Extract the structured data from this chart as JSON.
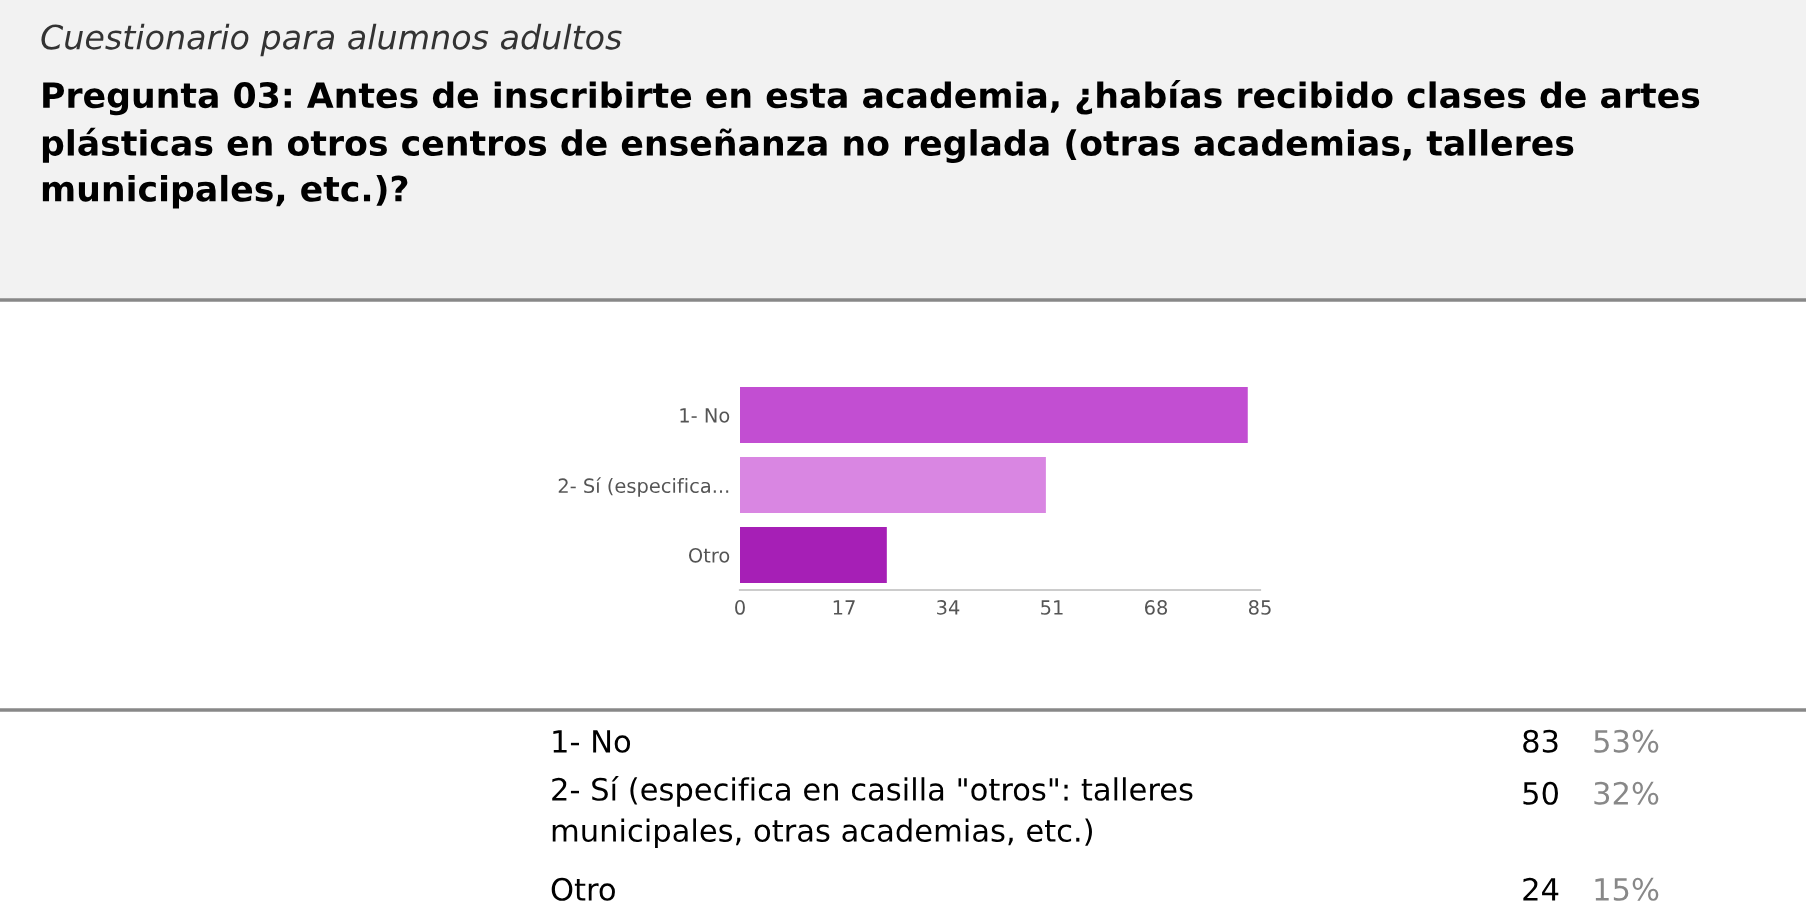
{
  "chart_data": {
    "type": "bar",
    "orientation": "horizontal",
    "subtitle": "Cuestionario para alumnos adultos",
    "title": "Pregunta 03: Antes de inscribirte en esta academia, ¿habías recibido clases de artes plásticas en otros centros de enseñanza no reglada (otras academias, talleres municipales, etc.)?",
    "categories": [
      "1- No",
      "2- Sí (especifica...",
      "Otro"
    ],
    "values": [
      83,
      50,
      24
    ],
    "colors": [
      "#c24ed2",
      "#d986e2",
      "#a61fb6"
    ],
    "xlim": [
      0,
      85
    ],
    "xticks": [
      0,
      17,
      34,
      51,
      68,
      85
    ],
    "grid": false,
    "annotations": [
      "1- No",
      "2- Sí (especifica en casilla \"otros\": talleres municipales, otras academias, etc.)",
      "Otro",
      "83",
      "50",
      "24",
      "53%",
      "32%",
      "15%"
    ]
  }
}
